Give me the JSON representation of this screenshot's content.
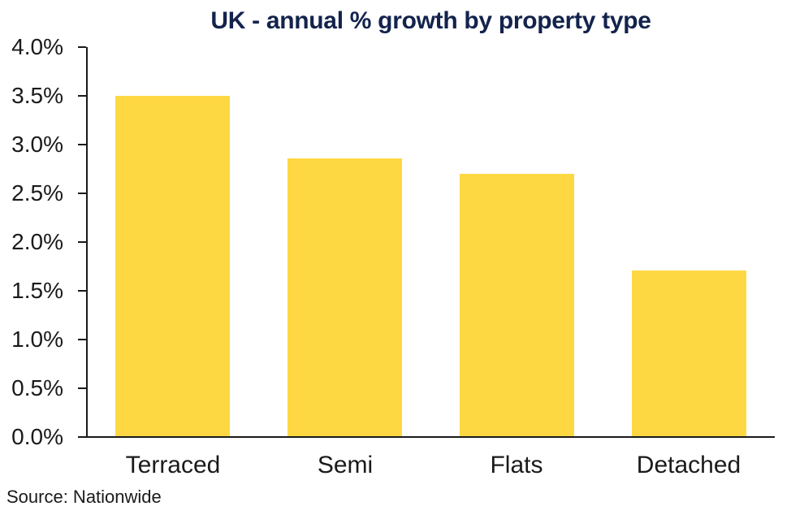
{
  "chart_data": {
    "type": "bar",
    "title": "UK - annual % growth by property type",
    "categories": [
      "Terraced",
      "Semi",
      "Flats",
      "Detached"
    ],
    "values": [
      3.49,
      2.85,
      2.69,
      1.7
    ],
    "xlabel": "",
    "ylabel": "",
    "ylim": [
      0,
      4
    ],
    "ytick_step": 0.5,
    "ytick_labels": [
      "0.0%",
      "0.5%",
      "1.0%",
      "1.5%",
      "2.0%",
      "2.5%",
      "3.0%",
      "3.5%",
      "4.0%"
    ],
    "grid": false,
    "legend": false,
    "bar_color": "#FED843",
    "title_color": "#13234C",
    "axis_color": "#1a1a1a",
    "label_color": "#1a1a1a"
  },
  "source": {
    "label": "Source: Nationwide"
  }
}
